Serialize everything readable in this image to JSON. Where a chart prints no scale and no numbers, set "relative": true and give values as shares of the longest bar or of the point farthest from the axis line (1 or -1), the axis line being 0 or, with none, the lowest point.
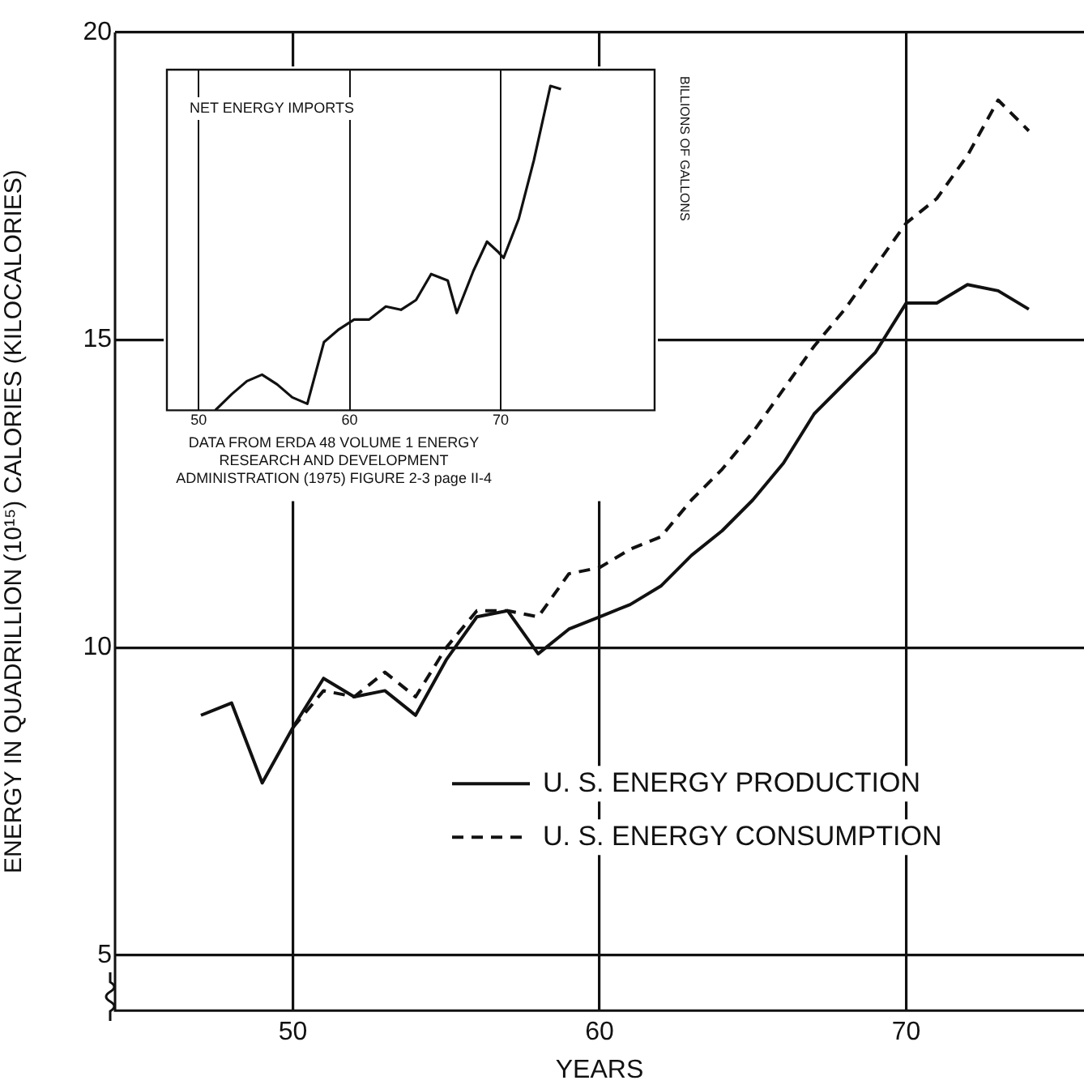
{
  "chart_data": [
    {
      "type": "line",
      "xlabel": "YEARS",
      "ylabel": "ENERGY IN QUADRILLION (10¹⁵) CALORIES (KILOCALORIES)",
      "xlim": [
        44.2,
        75.8
      ],
      "xticks": [
        50,
        60,
        70
      ],
      "ylim": [
        4.1,
        20
      ],
      "yticks": [
        5,
        10,
        15,
        20
      ],
      "grid": true,
      "legend": "bottom right",
      "series": [
        {
          "name": "U. S. ENERGY PRODUCTION",
          "color": "#111111",
          "line_style": "solid",
          "x": [
            47,
            48,
            49,
            50,
            51,
            52,
            53,
            54,
            55,
            56,
            57,
            58,
            59,
            60,
            61,
            62,
            63,
            64,
            65,
            66,
            67,
            68,
            69,
            70,
            71,
            72,
            73,
            74
          ],
          "values": [
            8.9,
            9.1,
            7.8,
            8.7,
            9.5,
            9.2,
            9.3,
            8.9,
            9.8,
            10.5,
            10.6,
            9.9,
            10.3,
            10.5,
            10.7,
            11.0,
            11.5,
            11.9,
            12.4,
            13.0,
            13.8,
            14.3,
            14.8,
            15.6,
            15.6,
            15.9,
            15.8,
            15.5
          ]
        },
        {
          "name": "U. S. ENERGY CONSUMPTION",
          "color": "#111111",
          "line_style": "dashed",
          "x": [
            50,
            51,
            52,
            53,
            54,
            55,
            56,
            57,
            58,
            59,
            60,
            61,
            62,
            63,
            64,
            65,
            66,
            67,
            68,
            69,
            70,
            71,
            72,
            73,
            74
          ],
          "values": [
            8.7,
            9.3,
            9.2,
            9.6,
            9.2,
            10.0,
            10.6,
            10.6,
            10.5,
            11.2,
            11.3,
            11.6,
            11.8,
            12.4,
            12.9,
            13.5,
            14.2,
            14.9,
            15.5,
            16.2,
            16.9,
            17.3,
            18.0,
            18.9,
            18.4
          ]
        }
      ]
    },
    {
      "type": "line",
      "title": "NET ENERGY IMPORTS",
      "ylabel": "BILLIONS OF GALLONS",
      "relative": true,
      "xlim": [
        47.9,
        80.2
      ],
      "xticks": [
        50,
        60,
        70
      ],
      "grid": "x",
      "annotations": [
        "DATA FROM ERDA 48 VOLUME 1 ENERGY RESEARCH AND DEVELOPMENT ADMINISTRATION (1975) FIGURE 2-3 page II-4"
      ],
      "series": [
        {
          "color": "#111111",
          "line_style": "solid",
          "x": [
            51.1,
            52.2,
            53.2,
            54.2,
            55.2,
            56.2,
            57.2,
            58.3,
            59.3,
            60.3,
            61.3,
            62.4,
            63.4,
            64.4,
            65.4,
            66.5,
            67.1,
            68.2,
            69.1,
            69.8,
            70.2,
            71.2,
            72.2,
            73.3,
            74.0
          ],
          "values": [
            0,
            0.05,
            0.09,
            0.11,
            0.08,
            0.04,
            0.02,
            0.21,
            0.25,
            0.28,
            0.28,
            0.32,
            0.31,
            0.34,
            0.42,
            0.4,
            0.3,
            0.43,
            0.52,
            0.49,
            0.47,
            0.59,
            0.77,
            1.0,
            0.99
          ]
        }
      ]
    }
  ]
}
